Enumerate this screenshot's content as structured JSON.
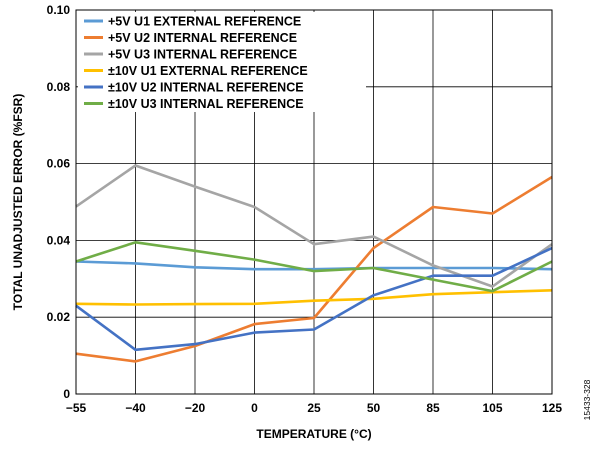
{
  "chart_data": {
    "type": "line",
    "x": [
      "−55",
      "−40",
      "−20",
      "0",
      "25",
      "50",
      "85",
      "105",
      "125"
    ],
    "y_ticks": [
      "0",
      "0.02",
      "0.04",
      "0.06",
      "0.08",
      "0.10"
    ],
    "ylim": [
      0,
      0.1
    ],
    "xlabel": "TEMPERATURE (°C)",
    "ylabel": "TOTAL UNADJUSTED ERROR (%FSR)",
    "grid": true,
    "legend_position": "top-left",
    "figure_id": "15433-328",
    "series": [
      {
        "name": "+5V U1 EXTERNAL REFERENCE",
        "color": "#5b9bd5",
        "values": [
          0.0345,
          0.034,
          0.033,
          0.0325,
          0.0325,
          0.0328,
          0.0328,
          0.0328,
          0.0325
        ]
      },
      {
        "name": "+5V U2 INTERNAL REFERENCE",
        "color": "#ed7d31",
        "values": [
          0.0105,
          0.0085,
          0.0125,
          0.0182,
          0.0198,
          0.038,
          0.0487,
          0.047,
          0.0565
        ]
      },
      {
        "name": "+5V U3 INTERNAL REFERENCE",
        "color": "#a5a5a5",
        "values": [
          0.0488,
          0.0595,
          0.054,
          0.0487,
          0.039,
          0.041,
          0.0335,
          0.028,
          0.039
        ]
      },
      {
        "name": "±10V U1 EXTERNAL REFERENCE",
        "color": "#ffc000",
        "values": [
          0.0235,
          0.0233,
          0.0234,
          0.0235,
          0.0243,
          0.0248,
          0.026,
          0.0265,
          0.027
        ]
      },
      {
        "name": "±10V U2 INTERNAL REFERENCE",
        "color": "#4472c4",
        "values": [
          0.023,
          0.0115,
          0.013,
          0.016,
          0.0168,
          0.0257,
          0.0308,
          0.0308,
          0.038
        ]
      },
      {
        "name": "±10V U3 INTERNAL REFERENCE",
        "color": "#70ad47",
        "values": [
          0.0345,
          0.0395,
          0.0373,
          0.035,
          0.032,
          0.0328,
          0.0298,
          0.0268,
          0.0345
        ]
      }
    ]
  }
}
